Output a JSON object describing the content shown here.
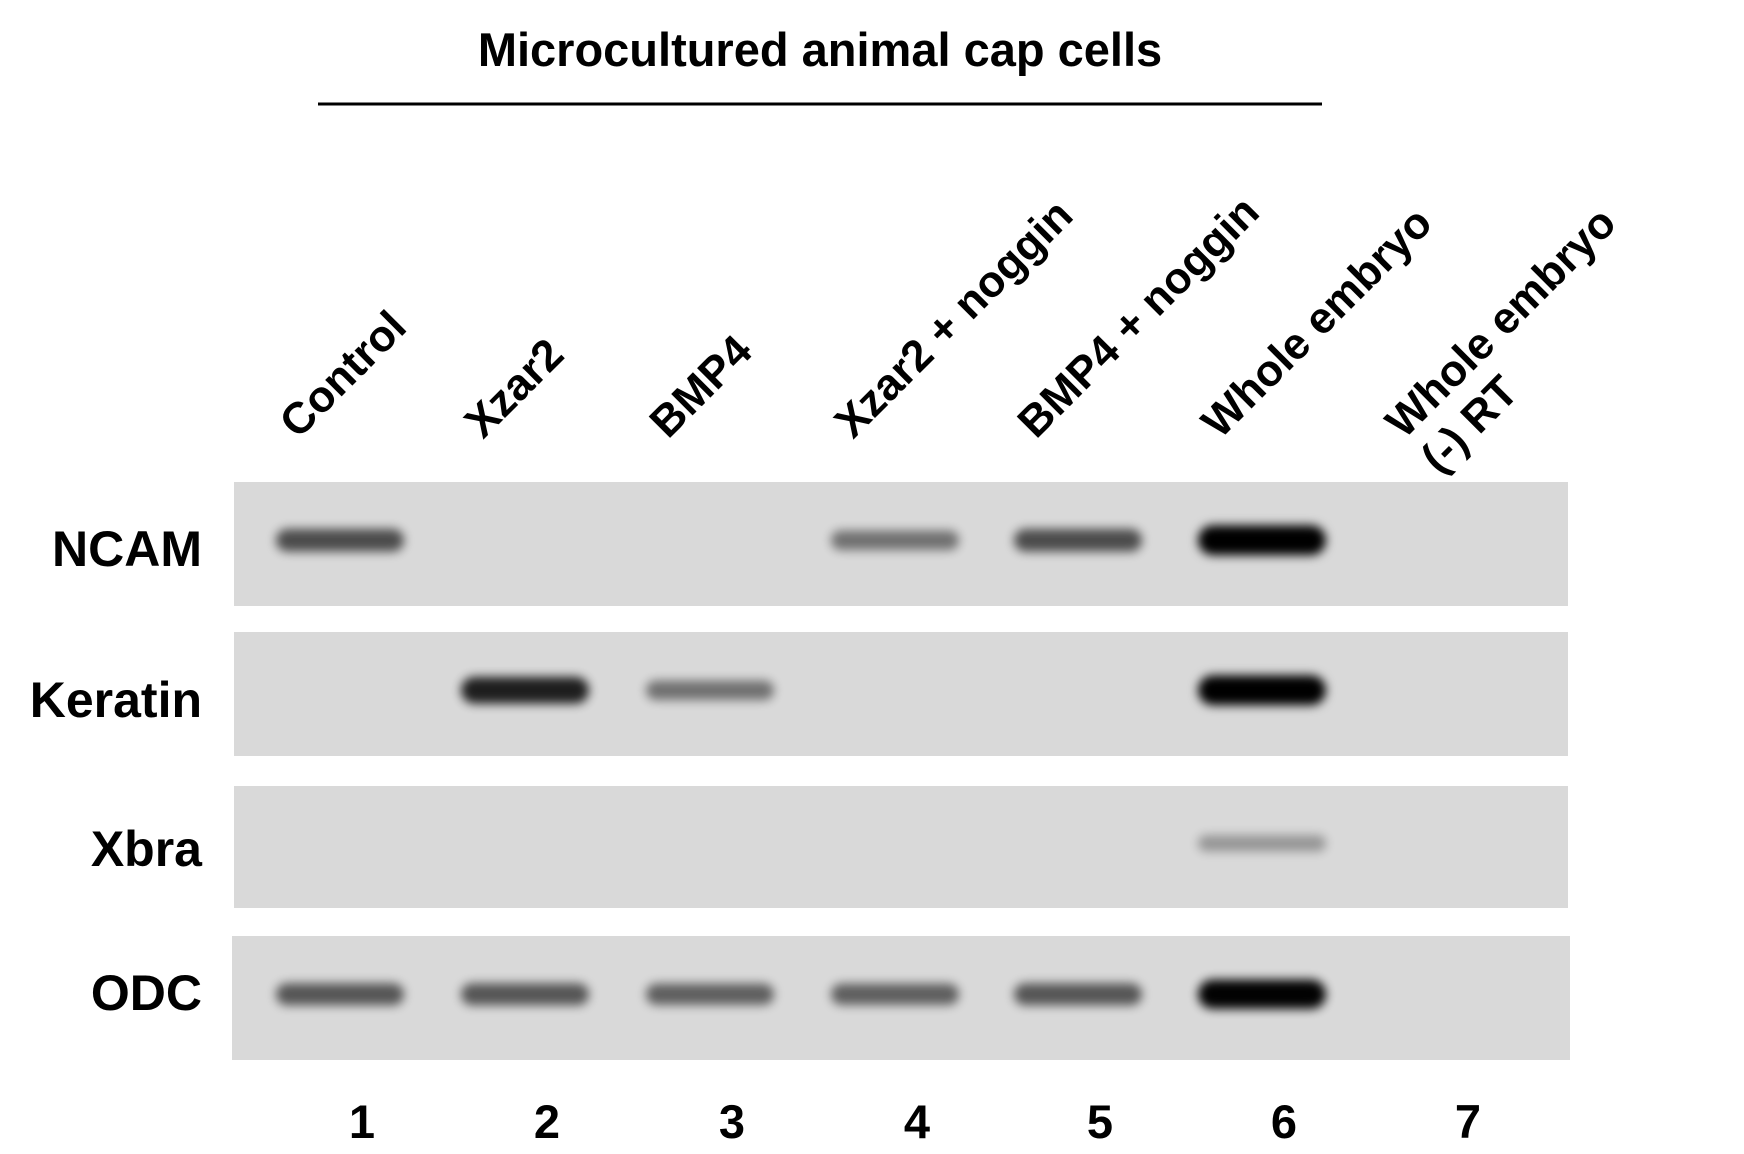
{
  "header": {
    "title": "Microcultured animal cap cells"
  },
  "lanes": [
    {
      "number": "1",
      "label_lines": [
        "Control"
      ]
    },
    {
      "number": "2",
      "label_lines": [
        "Xzar2"
      ]
    },
    {
      "number": "3",
      "label_lines": [
        "BMP4"
      ]
    },
    {
      "number": "4",
      "label_lines": [
        "Xzar2 + noggin"
      ]
    },
    {
      "number": "5",
      "label_lines": [
        "BMP4 + noggin"
      ]
    },
    {
      "number": "6",
      "label_lines": [
        "Whole embryo"
      ]
    },
    {
      "number": "7",
      "label_lines": [
        "Whole embryo",
        "(-) RT"
      ]
    }
  ],
  "panels": [
    {
      "gene": "NCAM",
      "band_intensity": [
        0.55,
        0.0,
        0.0,
        0.35,
        0.55,
        1.0,
        0.0
      ]
    },
    {
      "gene": "Keratin",
      "band_intensity": [
        0.0,
        0.8,
        0.35,
        0.0,
        0.0,
        1.0,
        0.0
      ]
    },
    {
      "gene": "Xbra",
      "band_intensity": [
        0.0,
        0.0,
        0.0,
        0.0,
        0.0,
        0.15,
        0.0
      ]
    },
    {
      "gene": "ODC",
      "band_intensity": [
        0.5,
        0.5,
        0.45,
        0.45,
        0.5,
        0.95,
        0.0
      ]
    }
  ],
  "colors": {
    "gel_background": "#d9d9d9",
    "band": "#000000",
    "text": "#000000"
  }
}
